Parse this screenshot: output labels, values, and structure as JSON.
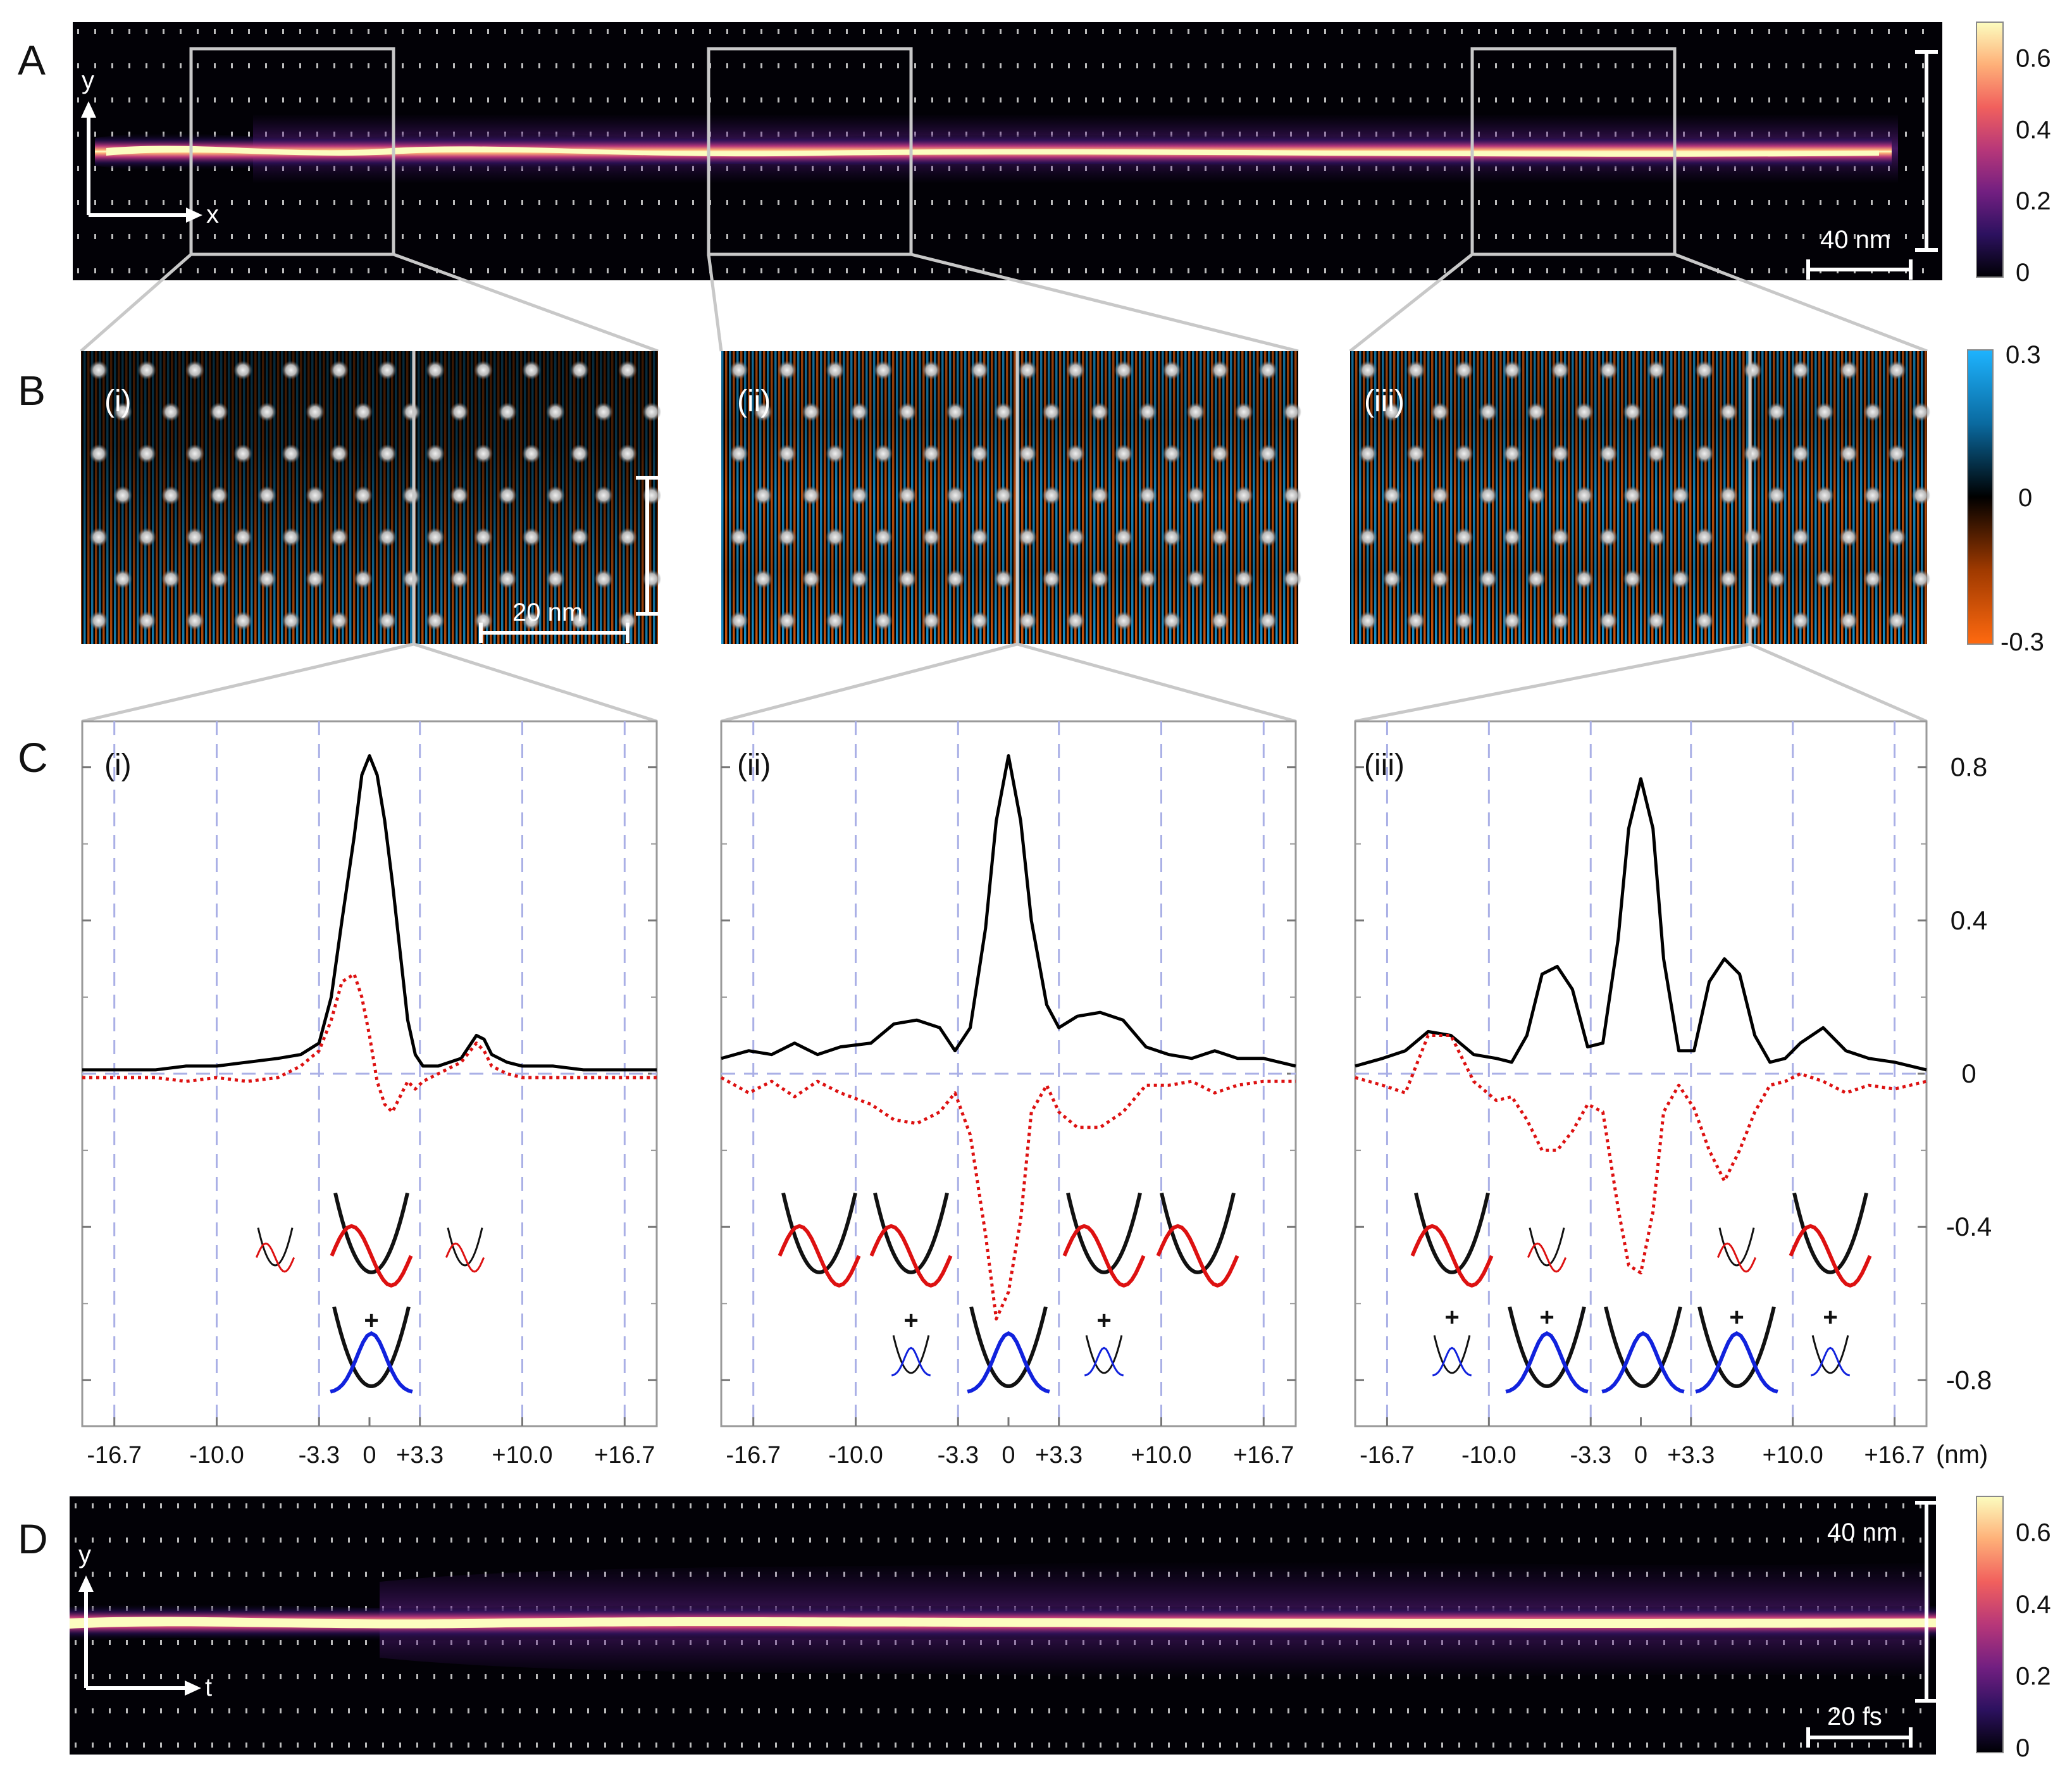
{
  "panel_letters": {
    "a": "A",
    "b": "B",
    "c": "C",
    "d": "D"
  },
  "colors": {
    "magma_stops": [
      "#000004",
      "#2c115f",
      "#721f81",
      "#b73779",
      "#f1605d",
      "#feb078",
      "#fcfdbf"
    ],
    "diverging_stops": [
      "#ff6a10",
      "#a03a00",
      "#000000",
      "#0a6aa0",
      "#1eb4ff"
    ],
    "exact_curve": "#000000",
    "approx_curve": "#dd1111",
    "mode_blue": "#1122dd",
    "frame": "#c8c8c8",
    "dashed_grid": "#aab0e6"
  },
  "panel_a": {
    "axis_y": "y",
    "axis_x": "x",
    "scalebar_label": "40 nm",
    "colorbar_ticks": [
      "0.6",
      "0.4",
      "0.2",
      "0"
    ],
    "colorbar_tick_values": [
      0.6,
      0.4,
      0.2,
      0.0
    ],
    "colorbar_max": 0.7
  },
  "panel_b": {
    "subpanel_labels": [
      "(i)",
      "(ii)",
      "(iii)"
    ],
    "scalebar_label": "20 nm",
    "colorbar_ticks": [
      "0.3",
      "0",
      "-0.3"
    ]
  },
  "panel_c": {
    "subpanel_labels": [
      "(i)",
      "(ii)",
      "(iii)"
    ],
    "x_tick_labels": [
      "-16.7",
      "-10.0",
      "-3.3",
      "0",
      "+3.3",
      "+10.0",
      "+16.7"
    ],
    "x_unit": "(nm)",
    "y_tick_labels": [
      "0.8",
      "0.4",
      "0",
      "-0.4",
      "-0.8"
    ],
    "plus_sign": "+"
  },
  "panel_d": {
    "axis_y": "y",
    "axis_t": "t",
    "scalebar_label_y": "40 nm",
    "scalebar_label_t": "20 fs",
    "colorbar_ticks": [
      "0.6",
      "0.4",
      "0.2",
      "0"
    ],
    "colorbar_tick_values": [
      0.6,
      0.4,
      0.2,
      0.0
    ],
    "colorbar_max": 0.7
  },
  "chart_data": [
    {
      "type": "line",
      "title": "",
      "panel": "C (i)",
      "xlabel": "(nm)",
      "ylabel": "",
      "xlim": [
        -18.8,
        18.8
      ],
      "ylim": [
        -0.92,
        0.92
      ],
      "x_ticks": [
        -16.7,
        -10.0,
        -3.3,
        0,
        3.3,
        10.0,
        16.7
      ],
      "y_ticks": [
        0.8,
        0.4,
        0,
        -0.4,
        -0.8
      ],
      "grid": "dashed vertical lines at x ticks, dashed zero line",
      "series": [
        {
          "style": "solid black",
          "x": [
            -18.8,
            -16.7,
            -14.0,
            -12.0,
            -10.0,
            -8.0,
            -6.0,
            -4.5,
            -3.3,
            -2.5,
            -1.8,
            -1.0,
            -0.5,
            0.0,
            0.5,
            1.0,
            1.5,
            2.0,
            2.5,
            3.0,
            3.5,
            4.5,
            6.0,
            7.0,
            7.5,
            8.0,
            9.0,
            10.0,
            12.0,
            14.0,
            16.7,
            18.8
          ],
          "y": [
            0.01,
            0.01,
            0.01,
            0.02,
            0.02,
            0.03,
            0.04,
            0.05,
            0.08,
            0.2,
            0.4,
            0.62,
            0.78,
            0.83,
            0.78,
            0.66,
            0.5,
            0.32,
            0.14,
            0.05,
            0.02,
            0.02,
            0.04,
            0.1,
            0.09,
            0.05,
            0.03,
            0.02,
            0.02,
            0.01,
            0.01,
            0.01
          ]
        },
        {
          "style": "dotted red",
          "x": [
            -18.8,
            -16.7,
            -14.0,
            -12.0,
            -10.0,
            -8.0,
            -6.0,
            -4.5,
            -3.3,
            -2.5,
            -1.8,
            -1.0,
            -0.5,
            0.0,
            0.5,
            1.0,
            1.5,
            2.0,
            2.5,
            3.0,
            3.5,
            4.5,
            6.0,
            7.0,
            7.5,
            8.0,
            9.0,
            10.0,
            12.0,
            14.0,
            16.7,
            18.8
          ],
          "y": [
            -0.01,
            -0.01,
            -0.01,
            -0.02,
            -0.01,
            -0.02,
            -0.01,
            0.02,
            0.06,
            0.14,
            0.24,
            0.26,
            0.2,
            0.1,
            -0.02,
            -0.08,
            -0.1,
            -0.06,
            -0.02,
            -0.04,
            -0.02,
            0.0,
            0.03,
            0.08,
            0.06,
            0.02,
            0.0,
            -0.01,
            -0.01,
            -0.01,
            -0.01,
            -0.01
          ]
        }
      ]
    },
    {
      "type": "line",
      "title": "",
      "panel": "C (ii)",
      "xlabel": "(nm)",
      "ylabel": "",
      "xlim": [
        -18.8,
        18.8
      ],
      "ylim": [
        -0.92,
        0.92
      ],
      "x_ticks": [
        -16.7,
        -10.0,
        -3.3,
        0,
        3.3,
        10.0,
        16.7
      ],
      "y_ticks": [
        0.8,
        0.4,
        0,
        -0.4,
        -0.8
      ],
      "grid": "dashed vertical lines at x ticks, dashed zero line",
      "series": [
        {
          "style": "solid black",
          "x": [
            -18.8,
            -17.0,
            -15.5,
            -14.0,
            -12.5,
            -11.0,
            -9.0,
            -7.5,
            -6.0,
            -4.5,
            -3.5,
            -2.5,
            -1.5,
            -0.8,
            0.0,
            0.8,
            1.5,
            2.5,
            3.3,
            4.5,
            6.0,
            7.5,
            9.0,
            10.5,
            12.0,
            13.5,
            15.0,
            16.7,
            18.8
          ],
          "y": [
            0.04,
            0.06,
            0.05,
            0.08,
            0.05,
            0.07,
            0.08,
            0.13,
            0.14,
            0.12,
            0.06,
            0.12,
            0.38,
            0.66,
            0.83,
            0.66,
            0.4,
            0.18,
            0.12,
            0.15,
            0.16,
            0.14,
            0.07,
            0.05,
            0.04,
            0.06,
            0.04,
            0.04,
            0.02
          ]
        },
        {
          "style": "dotted red",
          "x": [
            -18.8,
            -17.0,
            -15.5,
            -14.0,
            -12.5,
            -11.0,
            -9.0,
            -7.5,
            -6.0,
            -4.5,
            -3.5,
            -2.5,
            -1.5,
            -0.8,
            0.0,
            0.8,
            1.5,
            2.5,
            3.3,
            4.5,
            6.0,
            7.5,
            9.0,
            10.5,
            12.0,
            13.5,
            15.0,
            16.7,
            18.8
          ],
          "y": [
            -0.01,
            -0.05,
            -0.02,
            -0.06,
            -0.02,
            -0.05,
            -0.08,
            -0.12,
            -0.13,
            -0.1,
            -0.05,
            -0.16,
            -0.42,
            -0.64,
            -0.57,
            -0.38,
            -0.1,
            -0.03,
            -0.1,
            -0.14,
            -0.14,
            -0.1,
            -0.03,
            -0.03,
            -0.02,
            -0.05,
            -0.03,
            -0.02,
            -0.02
          ]
        }
      ]
    },
    {
      "type": "line",
      "title": "",
      "panel": "C (iii)",
      "xlabel": "(nm)",
      "ylabel": "",
      "xlim": [
        -18.8,
        18.8
      ],
      "ylim": [
        -0.92,
        0.92
      ],
      "x_ticks": [
        -16.7,
        -10.0,
        -3.3,
        0,
        3.3,
        10.0,
        16.7
      ],
      "y_ticks": [
        0.8,
        0.4,
        0,
        -0.4,
        -0.8
      ],
      "grid": "dashed vertical lines at x ticks, dashed zero line",
      "series": [
        {
          "style": "solid black",
          "x": [
            -18.8,
            -17.0,
            -15.5,
            -14.0,
            -12.5,
            -11.0,
            -9.5,
            -8.5,
            -7.5,
            -6.5,
            -5.5,
            -4.5,
            -3.5,
            -2.5,
            -1.5,
            -0.8,
            0.0,
            0.8,
            1.5,
            2.5,
            3.5,
            4.5,
            5.5,
            6.5,
            7.5,
            8.5,
            9.5,
            10.5,
            12.0,
            13.5,
            15.0,
            16.7,
            18.8
          ],
          "y": [
            0.02,
            0.04,
            0.06,
            0.11,
            0.1,
            0.05,
            0.04,
            0.03,
            0.1,
            0.26,
            0.28,
            0.22,
            0.07,
            0.08,
            0.35,
            0.64,
            0.77,
            0.64,
            0.3,
            0.06,
            0.06,
            0.24,
            0.3,
            0.26,
            0.1,
            0.03,
            0.04,
            0.08,
            0.12,
            0.06,
            0.04,
            0.03,
            0.01
          ]
        },
        {
          "style": "dotted red",
          "x": [
            -18.8,
            -17.0,
            -15.5,
            -14.0,
            -12.5,
            -11.0,
            -9.5,
            -8.5,
            -7.5,
            -6.5,
            -5.5,
            -4.5,
            -3.5,
            -2.5,
            -1.5,
            -0.8,
            0.0,
            0.8,
            1.5,
            2.5,
            3.5,
            4.5,
            5.5,
            6.5,
            7.5,
            8.5,
            9.5,
            10.5,
            12.0,
            13.5,
            15.0,
            16.7,
            18.8
          ],
          "y": [
            -0.01,
            -0.03,
            -0.05,
            0.1,
            0.1,
            -0.02,
            -0.07,
            -0.06,
            -0.12,
            -0.2,
            -0.2,
            -0.15,
            -0.08,
            -0.1,
            -0.35,
            -0.5,
            -0.52,
            -0.36,
            -0.1,
            -0.03,
            -0.09,
            -0.2,
            -0.28,
            -0.2,
            -0.1,
            -0.03,
            -0.02,
            0.0,
            -0.02,
            -0.05,
            -0.03,
            -0.04,
            -0.02
          ]
        }
      ]
    }
  ]
}
